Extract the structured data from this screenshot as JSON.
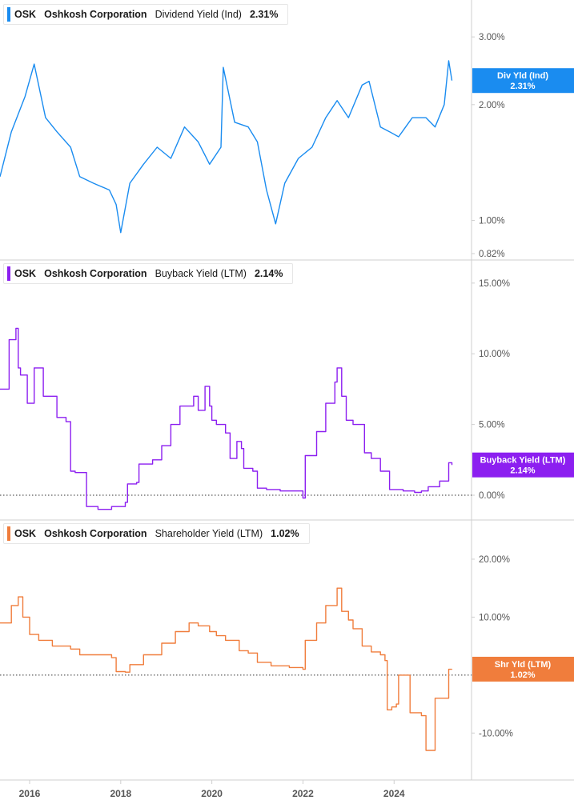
{
  "x_axis": {
    "ticks": [
      "2016",
      "2018",
      "2020",
      "2022",
      "2024"
    ],
    "tick_positions": [
      2016,
      2018,
      2020,
      2022,
      2024
    ],
    "range": [
      2015.35,
      2025.7
    ]
  },
  "panels": [
    {
      "legend": {
        "ticker": "OSK",
        "company": "Oshkosh Corporation",
        "metric": "Dividend Yield (Ind)",
        "value": "2.31%"
      },
      "color": "#1a8cf0",
      "badge": {
        "line1": "Div Yld (Ind)",
        "line2": "2.31%"
      }
    },
    {
      "legend": {
        "ticker": "OSK",
        "company": "Oshkosh Corporation",
        "metric": "Buyback Yield (LTM)",
        "value": "2.14%"
      },
      "color": "#8c1ff0",
      "badge": {
        "line1": "Buyback Yield (LTM)",
        "line2": "2.14%"
      }
    },
    {
      "legend": {
        "ticker": "OSK",
        "company": "Oshkosh Corporation",
        "metric": "Shareholder Yield (LTM)",
        "value": "1.02%"
      },
      "color": "#f07d3c",
      "badge": {
        "line1": "Shr Yld (LTM)",
        "line2": "1.02%"
      }
    }
  ],
  "chart_data": [
    {
      "type": "line",
      "series": [
        {
          "name": "Dividend Yield (Ind)",
          "x": [
            2015.35,
            2015.6,
            2015.9,
            2016.1,
            2016.35,
            2016.6,
            2016.9,
            2017.1,
            2017.4,
            2017.75,
            2017.9,
            2018.0,
            2018.2,
            2018.5,
            2018.8,
            2019.1,
            2019.4,
            2019.7,
            2019.95,
            2020.2,
            2020.25,
            2020.5,
            2020.8,
            2021.0,
            2021.2,
            2021.4,
            2021.6,
            2021.9,
            2022.2,
            2022.5,
            2022.75,
            2023.0,
            2023.3,
            2023.45,
            2023.7,
            2023.9,
            2024.1,
            2024.4,
            2024.7,
            2024.9,
            2025.1,
            2025.2,
            2025.27
          ],
          "values": [
            1.3,
            1.7,
            2.1,
            2.55,
            1.85,
            1.7,
            1.55,
            1.3,
            1.25,
            1.2,
            1.1,
            0.93,
            1.25,
            1.4,
            1.55,
            1.45,
            1.75,
            1.6,
            1.4,
            1.55,
            2.5,
            1.8,
            1.75,
            1.6,
            1.2,
            0.98,
            1.25,
            1.45,
            1.55,
            1.85,
            2.05,
            1.85,
            2.25,
            2.3,
            1.75,
            1.7,
            1.65,
            1.85,
            1.85,
            1.75,
            2.0,
            2.6,
            2.31
          ]
        }
      ],
      "ylim": [
        0.82,
        3.4
      ],
      "yscale": "log",
      "yticks": [
        3.0,
        2.0,
        1.0,
        0.82
      ],
      "ytick_labels": [
        "3.00%",
        "2.00%",
        "1.00%",
        "0.82%"
      ]
    },
    {
      "type": "line",
      "series": [
        {
          "name": "Buyback Yield (LTM)",
          "x": [
            2015.35,
            2015.55,
            2015.7,
            2015.75,
            2015.8,
            2015.95,
            2016.1,
            2016.3,
            2016.6,
            2016.8,
            2016.9,
            2017.0,
            2017.2,
            2017.25,
            2017.5,
            2017.8,
            2018.1,
            2018.15,
            2018.35,
            2018.4,
            2018.7,
            2018.9,
            2019.1,
            2019.3,
            2019.6,
            2019.7,
            2019.85,
            2019.95,
            2020.0,
            2020.1,
            2020.3,
            2020.4,
            2020.55,
            2020.65,
            2020.7,
            2020.9,
            2021.0,
            2021.2,
            2021.5,
            2021.75,
            2022.0,
            2022.05,
            2022.3,
            2022.5,
            2022.7,
            2022.75,
            2022.85,
            2022.95,
            2023.1,
            2023.35,
            2023.5,
            2023.7,
            2023.9,
            2024.2,
            2024.45,
            2024.6,
            2024.75,
            2025.0,
            2025.2,
            2025.27
          ],
          "values": [
            7.5,
            11.0,
            11.8,
            9.0,
            8.5,
            6.5,
            9.0,
            7.0,
            5.5,
            5.2,
            1.7,
            1.6,
            1.6,
            -0.8,
            -1.0,
            -0.8,
            -0.5,
            0.8,
            0.9,
            2.2,
            2.5,
            3.5,
            5.0,
            6.3,
            7.0,
            6.0,
            7.7,
            6.3,
            5.3,
            5.0,
            4.4,
            2.6,
            3.8,
            3.3,
            1.9,
            1.7,
            0.5,
            0.4,
            0.3,
            0.3,
            -0.2,
            2.8,
            4.5,
            6.5,
            8.0,
            9.0,
            7.0,
            5.3,
            5.0,
            3.0,
            2.6,
            1.7,
            0.4,
            0.3,
            0.2,
            0.3,
            0.6,
            1.0,
            2.3,
            2.14
          ]
        }
      ],
      "ylim": [
        -1.3,
        15.5
      ],
      "yticks": [
        15,
        10,
        5,
        0
      ],
      "ytick_labels": [
        "15.00%",
        "10.00%",
        "5.00%",
        "0.00%"
      ]
    },
    {
      "type": "line",
      "series": [
        {
          "name": "Shareholder Yield (LTM)",
          "x": [
            2015.35,
            2015.6,
            2015.75,
            2015.85,
            2016.0,
            2016.2,
            2016.5,
            2016.9,
            2017.1,
            2017.6,
            2017.8,
            2017.9,
            2018.1,
            2018.2,
            2018.5,
            2018.9,
            2019.2,
            2019.5,
            2019.7,
            2019.95,
            2020.1,
            2020.3,
            2020.6,
            2020.8,
            2021.0,
            2021.3,
            2021.7,
            2022.0,
            2022.05,
            2022.3,
            2022.5,
            2022.75,
            2022.85,
            2023.0,
            2023.1,
            2023.3,
            2023.5,
            2023.7,
            2023.8,
            2023.85,
            2023.95,
            2024.05,
            2024.1,
            2024.3,
            2024.35,
            2024.6,
            2024.7,
            2024.85,
            2024.9,
            2025.1,
            2025.2,
            2025.27
          ],
          "values": [
            9.0,
            12.0,
            13.5,
            10.0,
            7.0,
            6.0,
            5.0,
            4.5,
            3.5,
            3.5,
            3.0,
            0.6,
            0.5,
            1.8,
            3.5,
            5.5,
            7.5,
            9.0,
            8.5,
            7.5,
            6.8,
            6.0,
            4.2,
            3.8,
            2.2,
            1.6,
            1.3,
            1.0,
            6.0,
            9.0,
            12.0,
            15.0,
            11.0,
            9.5,
            8.0,
            5.0,
            4.0,
            3.5,
            2.5,
            -6.0,
            -5.5,
            -5.0,
            0.0,
            0.0,
            -6.5,
            -7.0,
            -13.0,
            -13.0,
            -4.0,
            -4.0,
            1.0,
            1.02
          ]
        }
      ],
      "ylim": [
        -17,
        24
      ],
      "yticks": [
        20,
        10,
        0,
        -10
      ],
      "ytick_labels": [
        "20.00%",
        "10.00%",
        "0.00%",
        "-10.00%"
      ]
    }
  ]
}
